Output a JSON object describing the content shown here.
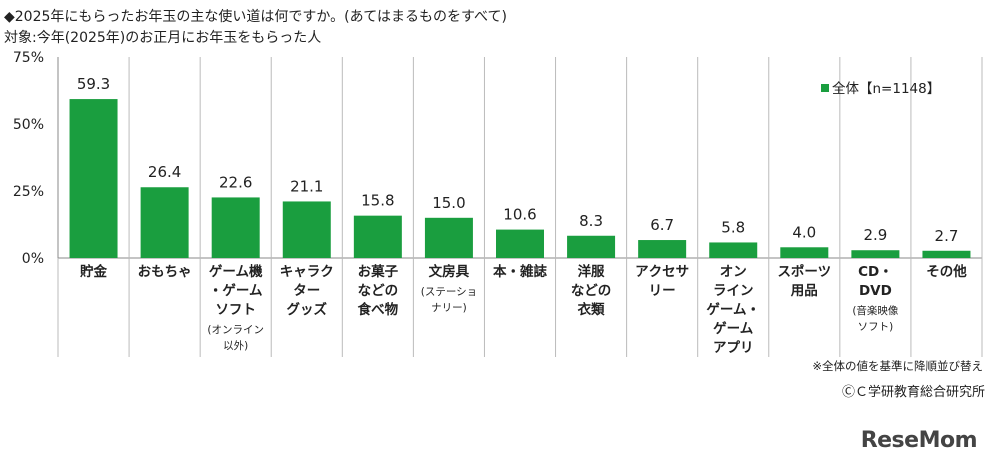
{
  "header": {
    "title": "◆2025年にもらったお年玉の主な使い道は何ですか。(あてはまるものをすべて)",
    "subtitle": "対象:今年(2025年)のお正月にお年玉をもらった人"
  },
  "footer": {
    "note": "※全体の値を基準に降順並び替え",
    "credit": "ⒸＣ学研教育総合研究所",
    "logo": "ReseMom"
  },
  "colors": {
    "bar": "#1a9e3f",
    "grid": "#bbbbbb",
    "axis": "#888888"
  },
  "chart_data": {
    "type": "bar",
    "title": "◆2025年にもらったお年玉の主な使い道は何ですか。(あてはまるものをすべて)",
    "ylim": [
      0,
      75
    ],
    "yticks": [
      "0%",
      "25%",
      "50%",
      "75%"
    ],
    "ytick_values": [
      0,
      25,
      50,
      75
    ],
    "legend": "全体【n=1148】",
    "legend_position": "top-right",
    "categories": [
      [
        "貯金"
      ],
      [
        "おもちゃ"
      ],
      [
        "ゲーム機",
        "・ゲーム",
        "ソフト",
        "(オンライン",
        "以外)"
      ],
      [
        "キャラク",
        "ター",
        "グッズ"
      ],
      [
        "お菓子",
        "などの",
        "食べ物"
      ],
      [
        "文房具",
        "(ステーショ",
        "ナリー)"
      ],
      [
        "本・雑誌"
      ],
      [
        "洋服",
        "などの",
        "衣類"
      ],
      [
        "アクセサ",
        "リー"
      ],
      [
        "オン",
        "ライン",
        "ゲーム・",
        "ゲーム",
        "アプリ"
      ],
      [
        "スポーツ",
        "用品"
      ],
      [
        "CD・",
        "DVD",
        "(音楽映像",
        "ソフト)"
      ],
      [
        "その他"
      ]
    ],
    "series": [
      {
        "name": "全体【n=1148】",
        "values": [
          59.3,
          26.4,
          22.6,
          21.1,
          15.8,
          15.0,
          10.6,
          8.3,
          6.7,
          5.8,
          4.0,
          2.9,
          2.7
        ],
        "labels": [
          "59.3",
          "26.4",
          "22.6",
          "21.1",
          "15.8",
          "15.0",
          "10.6",
          "8.3",
          "6.7",
          "5.8",
          "4.0",
          "2.9",
          "2.7"
        ]
      }
    ]
  }
}
